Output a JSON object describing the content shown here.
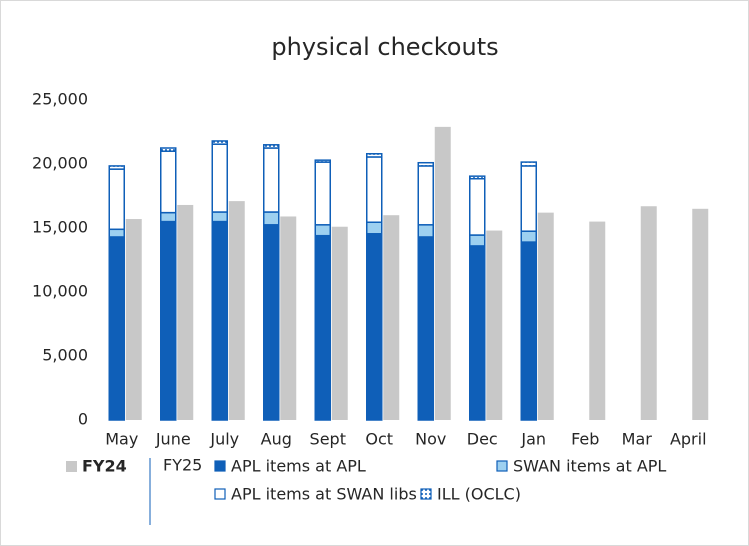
{
  "chart_data": {
    "type": "bar",
    "title": "physical checkouts",
    "categories": [
      "May",
      "June",
      "July",
      "Aug",
      "Sept",
      "Oct",
      "Nov",
      "Dec",
      "Jan",
      "Feb",
      "Mar",
      "April"
    ],
    "legend_group": "FY25",
    "series": [
      {
        "name": "FY24",
        "color": "#c8c8c8",
        "values": [
          15700,
          16800,
          17100,
          15900,
          15100,
          16000,
          22900,
          14800,
          16200,
          15500,
          16700,
          16500
        ]
      },
      {
        "name": "APL items at APL",
        "color": "#0f5fb8",
        "stack": "FY25",
        "values": [
          14300,
          15500,
          15500,
          15250,
          14400,
          14550,
          14300,
          13600,
          13900,
          null,
          null,
          null
        ]
      },
      {
        "name": "SWAN items at APL",
        "color": "#9dd0f0",
        "stack": "FY25",
        "values": [
          600,
          700,
          750,
          1000,
          850,
          900,
          950,
          850,
          850,
          null,
          null,
          null
        ]
      },
      {
        "name": "APL items at SWAN libs",
        "color": "#ffffff",
        "stack": "FY25",
        "values": [
          4700,
          4800,
          5300,
          5000,
          4900,
          5100,
          4600,
          4400,
          5100,
          null,
          null,
          null
        ]
      },
      {
        "name": "ILL (OCLC)",
        "color": "#0f5fb8",
        "pattern": "dots",
        "stack": "FY25",
        "values": [
          250,
          250,
          250,
          250,
          150,
          250,
          250,
          200,
          300,
          null,
          null,
          null
        ]
      }
    ],
    "ylim": [
      0,
      25000
    ],
    "yticks": [
      0,
      {
        "value": 5000,
        "label": "5,000"
      },
      {
        "value": 10000,
        "label": "10,000"
      },
      {
        "value": 15000,
        "label": "15,000"
      },
      {
        "value": 20000,
        "label": "20,000"
      },
      {
        "value": 25000,
        "label": "25,000"
      }
    ],
    "grid": false
  }
}
